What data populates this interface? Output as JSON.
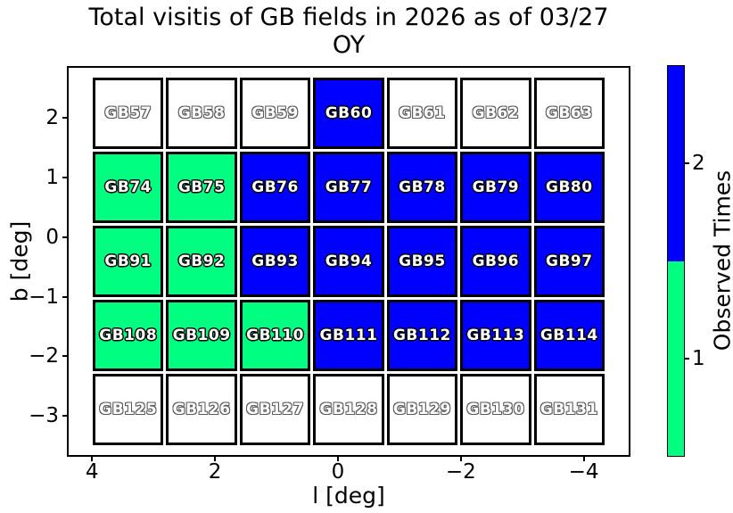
{
  "title": {
    "line1": "Total visitis of GB fields in 2026 as of 03/27",
    "line2": "OY"
  },
  "chart_data": {
    "type": "heatmap",
    "title": "Total visitis of GB fields in 2026 as of 03/27 OY",
    "xlabel": "l [deg]",
    "ylabel": "b [deg]",
    "x_ticks": [
      "4",
      "2",
      "0",
      "−2",
      "−4"
    ],
    "x_tick_values": [
      4,
      2,
      0,
      -2,
      -4
    ],
    "y_ticks": [
      "2",
      "1",
      "0",
      "−1",
      "−2",
      "−3"
    ],
    "y_tick_values": [
      2,
      1,
      0,
      -1,
      -2,
      -3
    ],
    "xlim": [
      4.41,
      -4.76
    ],
    "ylim": [
      -3.68,
      2.86
    ],
    "grid": "off",
    "rows": [
      {
        "fields": [
          "GB57",
          "GB58",
          "GB59",
          "GB60",
          "GB61",
          "GB62",
          "GB63"
        ],
        "values": [
          0,
          0,
          0,
          2,
          0,
          0,
          0
        ]
      },
      {
        "fields": [
          "GB74",
          "GB75",
          "GB76",
          "GB77",
          "GB78",
          "GB79",
          "GB80"
        ],
        "values": [
          1,
          1,
          2,
          2,
          2,
          2,
          2
        ]
      },
      {
        "fields": [
          "GB91",
          "GB92",
          "GB93",
          "GB94",
          "GB95",
          "GB96",
          "GB97"
        ],
        "values": [
          1,
          1,
          2,
          2,
          2,
          2,
          2
        ]
      },
      {
        "fields": [
          "GB108",
          "GB109",
          "GB110",
          "GB111",
          "GB112",
          "GB113",
          "GB114"
        ],
        "values": [
          1,
          1,
          1,
          2,
          2,
          2,
          2
        ]
      },
      {
        "fields": [
          "GB125",
          "GB126",
          "GB127",
          "GB128",
          "GB129",
          "GB130",
          "GB131"
        ],
        "values": [
          0,
          0,
          0,
          0,
          0,
          0,
          0
        ]
      }
    ],
    "value_colors": {
      "0": "#ffffff",
      "1": "#00ff80",
      "2": "#0000ff"
    },
    "colorbar": {
      "label": "Observed Times",
      "legend_position": "right",
      "segments": [
        {
          "value": 2,
          "tick": "2",
          "color": "#0000ff"
        },
        {
          "value": 1,
          "tick": "1",
          "color": "#00ff80"
        }
      ]
    }
  }
}
